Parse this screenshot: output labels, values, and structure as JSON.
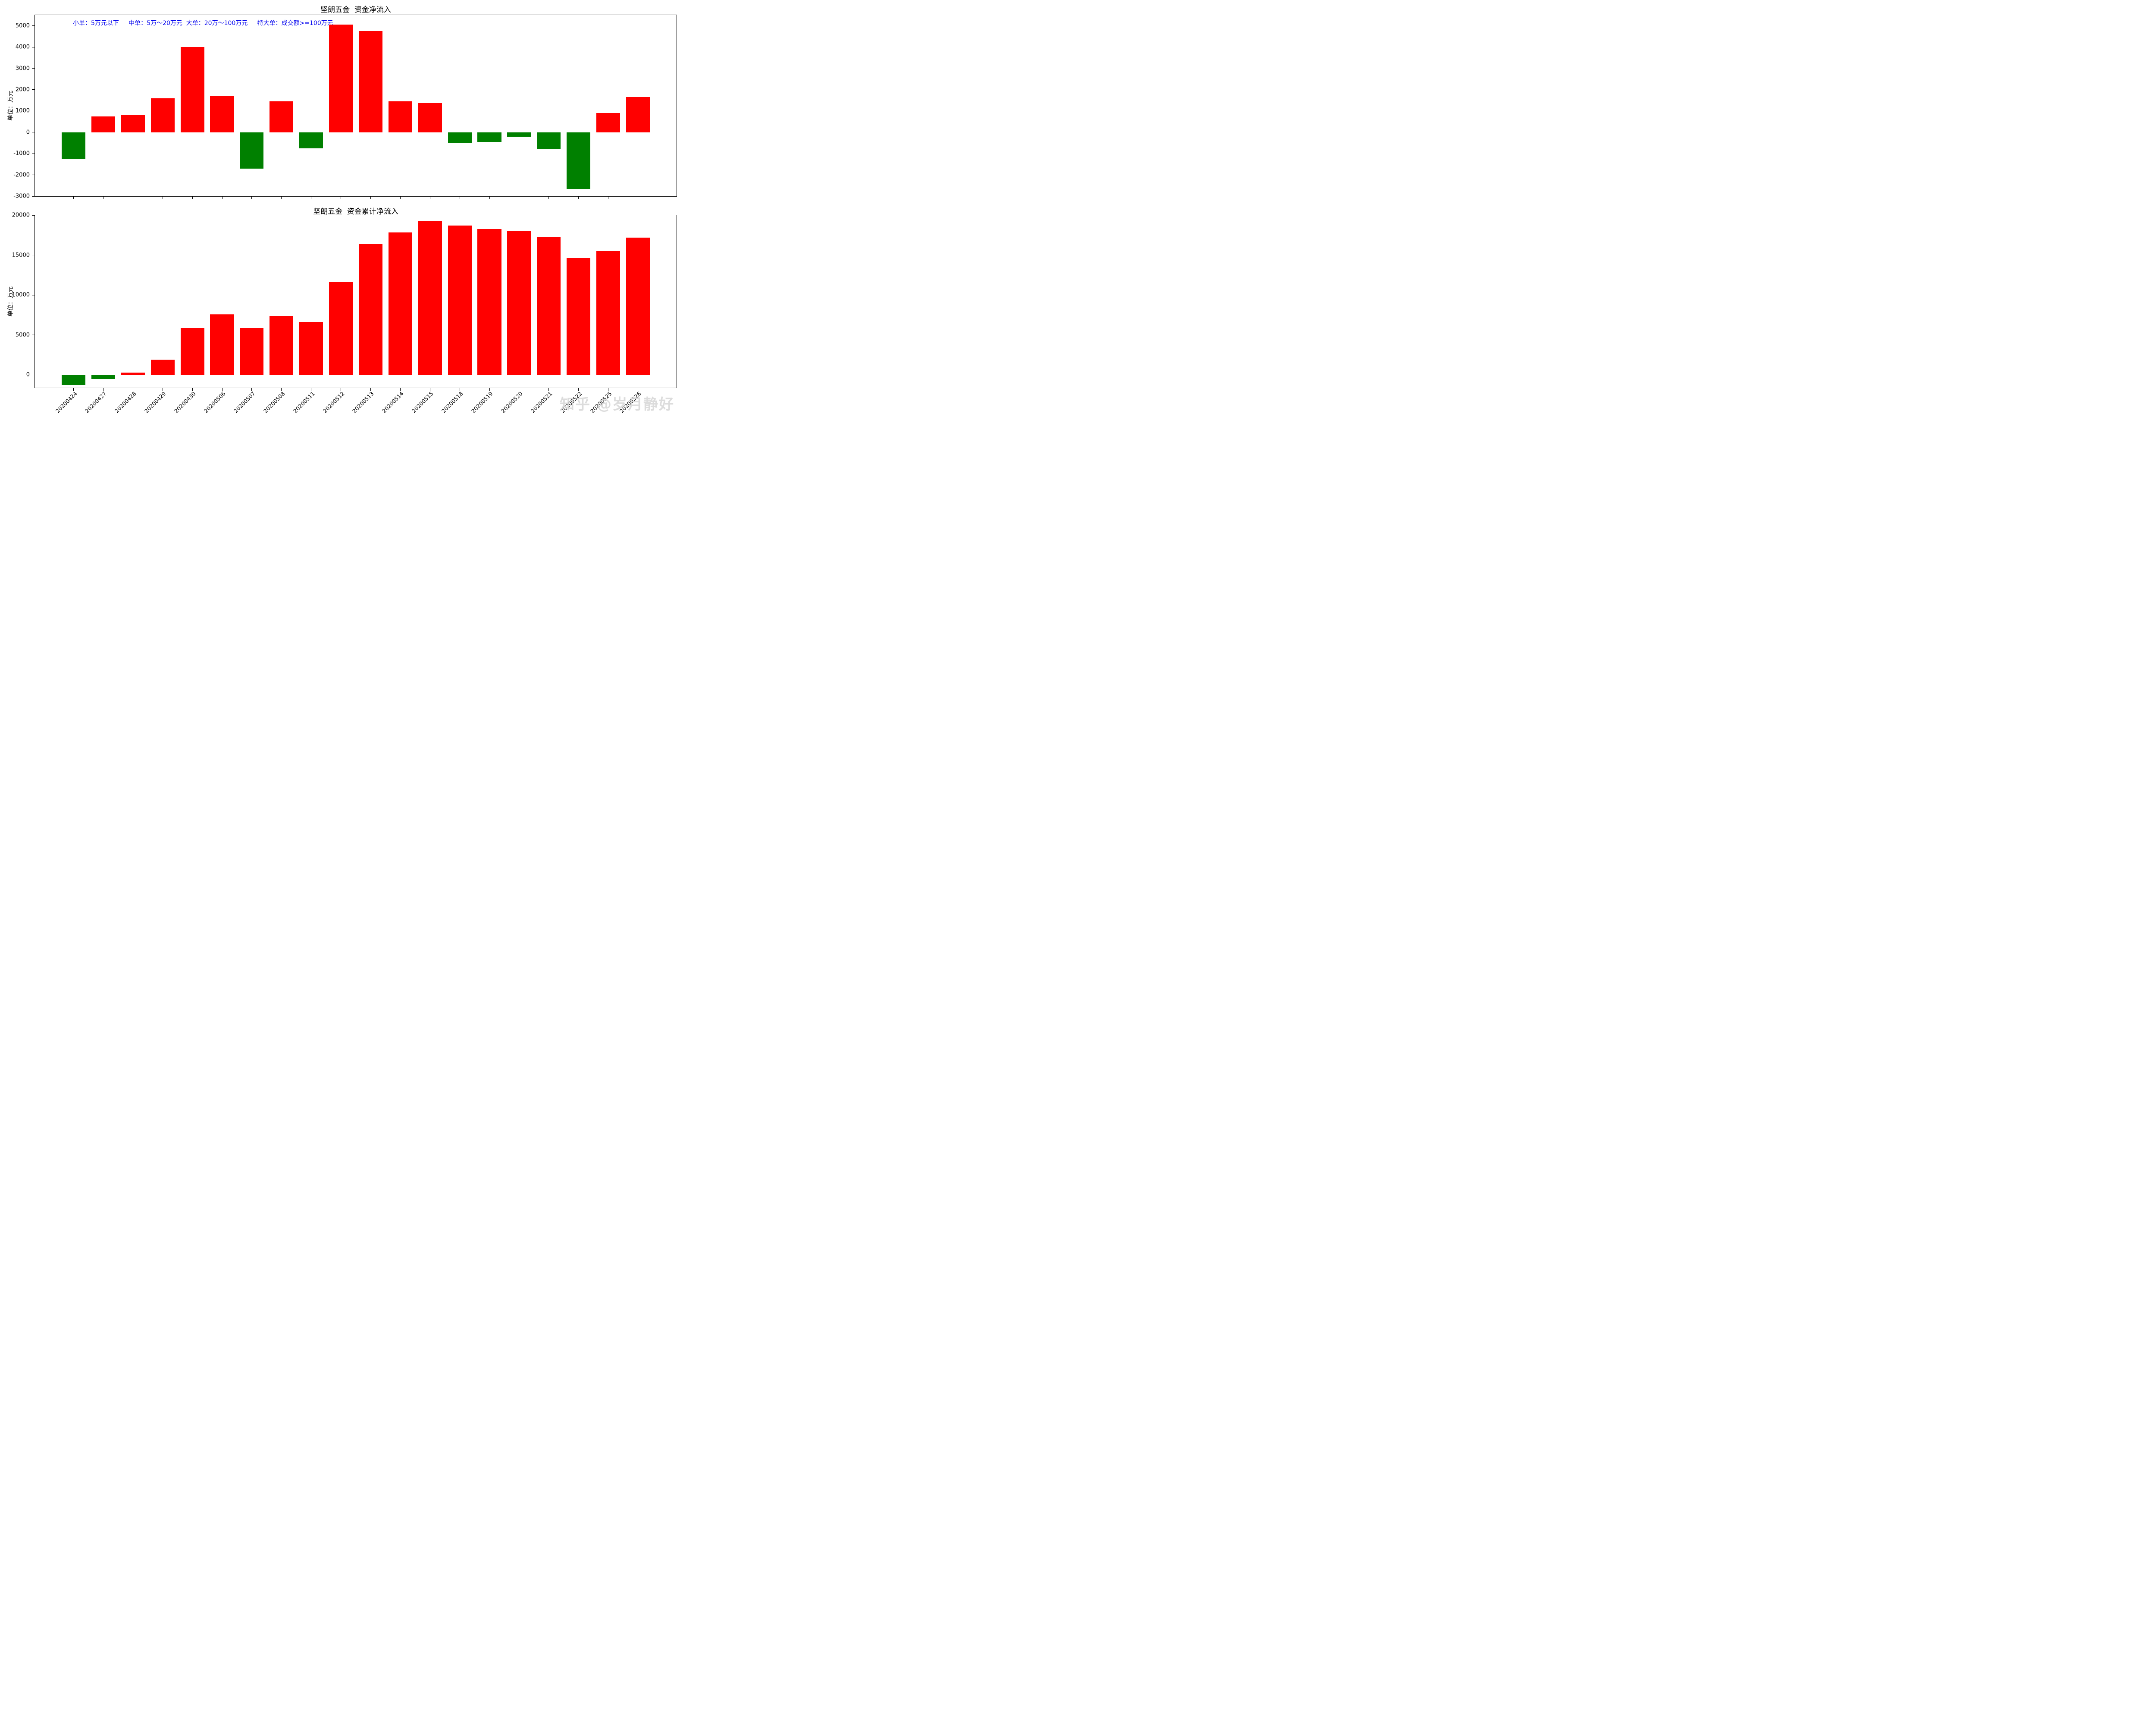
{
  "watermark": {
    "text": "知乎 @岁月静好"
  },
  "chart_data": [
    {
      "type": "bar",
      "title": "坚朗五金  资金净流入",
      "ylabel": "单位：万元",
      "annotation": {
        "text": "小单：5万元以下     中单：5万～20万元  大单：20万～100万元     特大单：成交额>=100万元",
        "color": "#0000ee"
      },
      "categories": [
        "20200424",
        "20200427",
        "20200428",
        "20200429",
        "20200430",
        "20200506",
        "20200507",
        "20200508",
        "20200511",
        "20200512",
        "20200513",
        "20200514",
        "20200515",
        "20200518",
        "20200519",
        "20200520",
        "20200521",
        "20200522",
        "20200525",
        "20200526"
      ],
      "values": [
        -1250,
        750,
        800,
        1600,
        4000,
        1700,
        -1700,
        1450,
        -750,
        5050,
        4750,
        1450,
        1380,
        -500,
        -450,
        -200,
        -800,
        -2650,
        900,
        1650
      ],
      "ylim": [
        -3000,
        5500
      ],
      "yticks": [
        -3000,
        -2000,
        -1000,
        0,
        1000,
        2000,
        3000,
        4000,
        5000
      ],
      "bar_color_positive": "#ff0000",
      "bar_color_negative": "#008000",
      "show_x_labels": false,
      "grid": false,
      "legend_position": "none"
    },
    {
      "type": "bar",
      "title": "坚朗五金  资金累计净流入",
      "ylabel": "单位：万元",
      "categories": [
        "20200424",
        "20200427",
        "20200428",
        "20200429",
        "20200430",
        "20200506",
        "20200507",
        "20200508",
        "20200511",
        "20200512",
        "20200513",
        "20200514",
        "20200515",
        "20200518",
        "20200519",
        "20200520",
        "20200521",
        "20200522",
        "20200525",
        "20200526"
      ],
      "values": [
        -1250,
        -500,
        300,
        1900,
        5900,
        7600,
        5900,
        7350,
        6600,
        11650,
        16400,
        17850,
        19230,
        18730,
        18280,
        18080,
        17280,
        14630,
        15530,
        17180
      ],
      "ylim": [
        -1600,
        20000
      ],
      "yticks": [
        0,
        5000,
        10000,
        15000,
        20000
      ],
      "bar_color_positive": "#ff0000",
      "bar_color_negative": "#008000",
      "show_x_labels": true,
      "x_label_rotation": 45,
      "grid": false,
      "legend_position": "none"
    }
  ]
}
